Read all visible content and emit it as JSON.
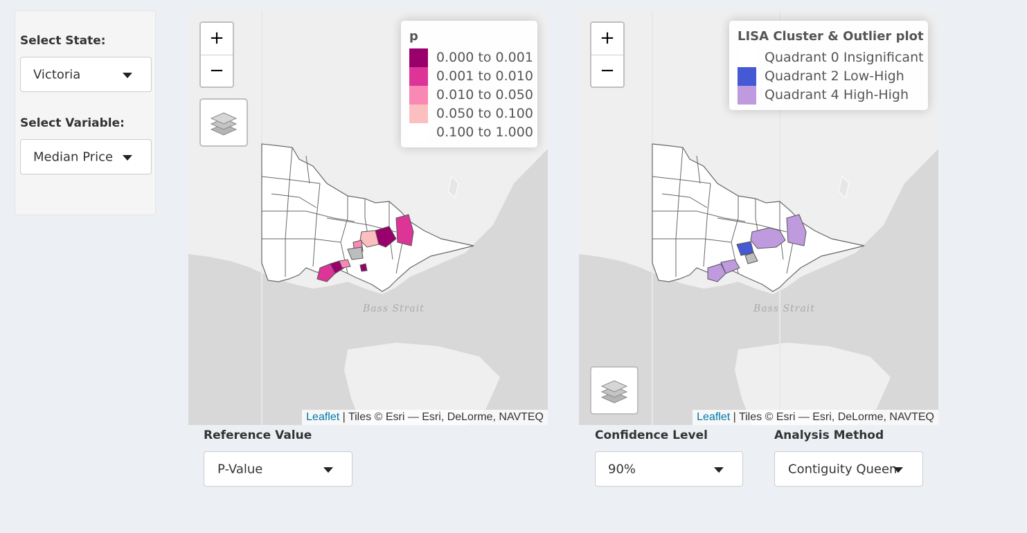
{
  "sidebar": {
    "state_label": "Select State:",
    "state_value": "Victoria",
    "variable_label": "Select Variable:",
    "variable_value": "Median Price"
  },
  "map_left": {
    "zoom_in": "+",
    "zoom_out": "−",
    "legend_title": "p",
    "legend_items": [
      {
        "label": "0.000 to 0.001",
        "color": "#99006b"
      },
      {
        "label": "0.001 to 0.010",
        "color": "#dd3497"
      },
      {
        "label": "0.010 to 0.050",
        "color": "#fa88b4"
      },
      {
        "label": "0.050 to 0.100",
        "color": "#fcbfc0"
      },
      {
        "label": "0.100 to 1.000",
        "color": "#ffffff"
      }
    ],
    "sea_label": "Bass Strait",
    "attribution_link": "Leaflet",
    "attribution_text": " | Tiles © Esri — Esri, DeLorme, NAVTEQ",
    "layers_icon": "layers-icon"
  },
  "map_right": {
    "zoom_in": "+",
    "zoom_out": "−",
    "legend_title": "LISA Cluster & Outlier plot",
    "legend_items": [
      {
        "label": "Quadrant 0 Insignificant",
        "color": "#ffffff"
      },
      {
        "label": "Quadrant 2 Low-High",
        "color": "#4459d3"
      },
      {
        "label": "Quadrant 4 High-High",
        "color": "#bf9adf"
      }
    ],
    "sea_label": "Bass Strait",
    "attribution_link": "Leaflet",
    "attribution_text": " | Tiles © Esri — Esri, DeLorme, NAVTEQ",
    "layers_icon": "layers-icon"
  },
  "controls": {
    "reference_label": "Reference Value",
    "reference_value": "P-Value",
    "confidence_label": "Confidence Level",
    "confidence_value": "90%",
    "method_label": "Analysis Method",
    "method_value": "Contiguity Queen"
  }
}
